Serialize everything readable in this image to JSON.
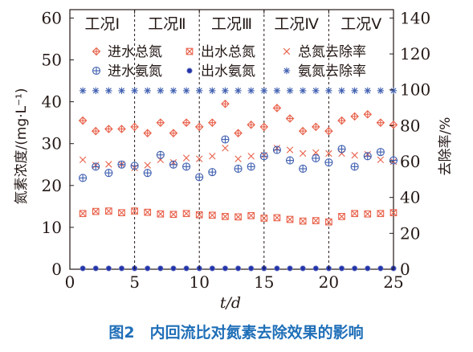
{
  "chart_data": {
    "type": "scatter",
    "xlabel": "t/d",
    "ylabel": "氮素浓度/(mg·L⁻¹)",
    "y2label": "去除率/%",
    "xlim": [
      0,
      25
    ],
    "ylim": [
      0,
      62
    ],
    "y2lim": [
      0,
      144.67
    ],
    "xticks": [
      0,
      5,
      10,
      15,
      20,
      25
    ],
    "yticks": [
      0,
      10,
      20,
      30,
      40,
      50,
      60
    ],
    "y2ticks": [
      0,
      20,
      40,
      60,
      80,
      100,
      120,
      140
    ],
    "phase_boundaries": [
      5,
      10,
      15,
      20
    ],
    "phases": [
      {
        "label": "工况Ⅰ",
        "x_center": 2.5
      },
      {
        "label": "工况Ⅱ",
        "x_center": 7.5
      },
      {
        "label": "工况Ⅲ",
        "x_center": 12.5
      },
      {
        "label": "工况Ⅳ",
        "x_center": 17.5
      },
      {
        "label": "工况Ⅴ",
        "x_center": 22.5
      }
    ],
    "legend_position": "top",
    "series": [
      {
        "name": "进水总氮",
        "axis": "left",
        "marker": "diamond-plus",
        "color": "#e8614a",
        "x": [
          1,
          2,
          3,
          4,
          5,
          6,
          7,
          8,
          9,
          10,
          11,
          12,
          13,
          14,
          15,
          16,
          17,
          18,
          19,
          20,
          21,
          22,
          23,
          24,
          25
        ],
        "y": [
          35.5,
          33.0,
          33.5,
          33.5,
          34.0,
          32.5,
          35.0,
          32.5,
          35.0,
          34.0,
          35.0,
          39.5,
          32.5,
          34.5,
          34.0,
          38.5,
          36.0,
          33.0,
          34.0,
          33.0,
          35.5,
          36.5,
          37.0,
          35.0,
          34.5
        ]
      },
      {
        "name": "出水总氮",
        "axis": "left",
        "marker": "box-x",
        "color": "#e8614a",
        "x": [
          1,
          2,
          3,
          4,
          5,
          6,
          7,
          8,
          9,
          10,
          11,
          12,
          13,
          14,
          15,
          16,
          17,
          18,
          19,
          20,
          21,
          22,
          23,
          24,
          25
        ],
        "y": [
          13.3,
          13.8,
          13.9,
          13.5,
          13.9,
          13.6,
          13.2,
          13.1,
          13.3,
          13.0,
          12.9,
          12.6,
          12.5,
          12.8,
          12.2,
          12.3,
          11.9,
          11.5,
          11.6,
          11.3,
          12.6,
          13.3,
          13.2,
          13.3,
          13.5
        ]
      },
      {
        "name": "总氮去除率",
        "axis": "right",
        "marker": "x",
        "color": "#e8614a",
        "x": [
          1,
          2,
          3,
          4,
          5,
          6,
          7,
          8,
          9,
          10,
          11,
          12,
          13,
          14,
          15,
          16,
          17,
          18,
          19,
          20,
          21,
          22,
          23,
          24,
          25
        ],
        "y": [
          61.0,
          58.0,
          58.5,
          58.5,
          56.5,
          58.0,
          61.0,
          59.5,
          62.0,
          61.5,
          63.0,
          67.5,
          61.5,
          63.0,
          63.5,
          67.5,
          66.5,
          64.5,
          65.0,
          64.5,
          64.5,
          63.5,
          64.0,
          61.0,
          60.0
        ]
      },
      {
        "name": "进水氨氮",
        "axis": "left",
        "marker": "circle-plus",
        "color": "#3f5fb0",
        "x": [
          1,
          2,
          3,
          4,
          5,
          6,
          7,
          8,
          9,
          10,
          11,
          12,
          13,
          14,
          15,
          16,
          17,
          18,
          19,
          20,
          21,
          22,
          23,
          24,
          25
        ],
        "y": [
          21.8,
          24.5,
          23.0,
          25.0,
          24.7,
          23.0,
          27.3,
          25.0,
          24.5,
          22.0,
          23.2,
          31.0,
          24.0,
          24.5,
          27.0,
          28.5,
          26.0,
          24.0,
          26.5,
          25.5,
          28.7,
          24.5,
          27.0,
          28.0,
          26.0
        ]
      },
      {
        "name": "出水氨氮",
        "axis": "left",
        "marker": "dot",
        "color": "#2233aa",
        "x": [
          1,
          2,
          3,
          4,
          5,
          6,
          7,
          8,
          9,
          10,
          11,
          12,
          13,
          14,
          15,
          16,
          17,
          18,
          19,
          20,
          21,
          22,
          23,
          24,
          25
        ],
        "y": [
          0.2,
          0.2,
          0.2,
          0.2,
          0.2,
          0.2,
          0.2,
          0.2,
          0.2,
          0.2,
          0.2,
          0.2,
          0.2,
          0.2,
          0.2,
          0.2,
          0.2,
          0.2,
          0.2,
          0.2,
          0.2,
          0.2,
          0.2,
          0.2,
          0.2
        ]
      },
      {
        "name": "氨氮去除率",
        "axis": "right",
        "marker": "asterisk",
        "color": "#3f5fb0",
        "x": [
          1,
          2,
          3,
          4,
          5,
          6,
          7,
          8,
          9,
          10,
          11,
          12,
          13,
          14,
          15,
          16,
          17,
          18,
          19,
          20,
          21,
          22,
          23,
          24,
          25
        ],
        "y": [
          99.5,
          99.5,
          99.5,
          99.5,
          99.5,
          99.5,
          99.5,
          99.5,
          99.5,
          99.5,
          99.5,
          99.5,
          99.5,
          99.5,
          99.5,
          99.5,
          99.5,
          99.5,
          99.5,
          99.5,
          99.5,
          99.5,
          99.5,
          99.5,
          99.5
        ]
      }
    ]
  },
  "caption": "图2　内回流比对氮素去除效果的影响"
}
